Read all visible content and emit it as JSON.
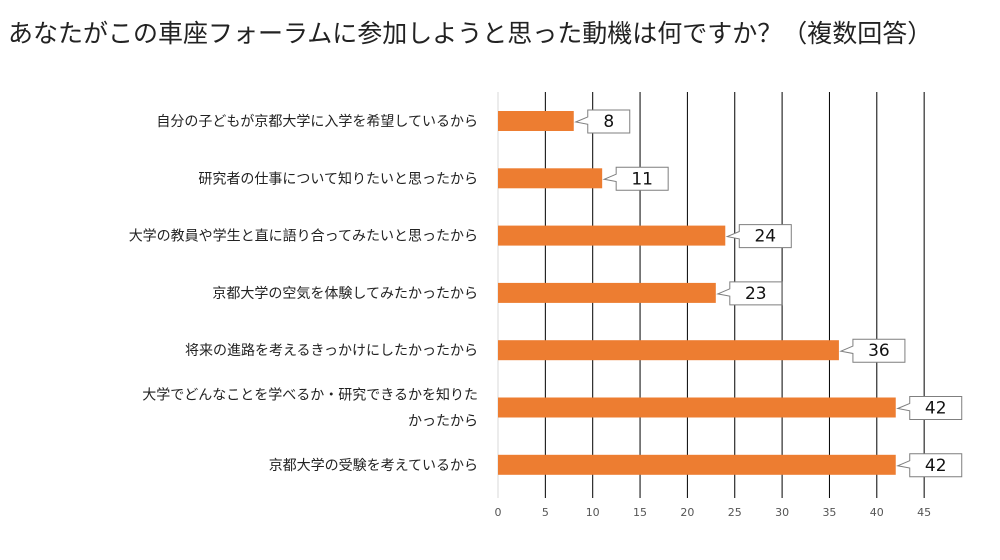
{
  "title": "あなたがこの車座フォーラムに参加しようと思った動機は何ですか？（複数回答）",
  "colors": {
    "bar": "#ED7D31",
    "grid": "#000000",
    "callout_border": "#7F7F7F"
  },
  "chart_data": {
    "type": "bar",
    "orientation": "horizontal",
    "categories": [
      [
        "自分の子どもが京都大学に入学を希望しているから"
      ],
      [
        "研究者の仕事について知りたいと思ったから"
      ],
      [
        "大学の教員や学生と直に語り合ってみたいと思ったから"
      ],
      [
        "京都大学の空気を体験してみたかったから"
      ],
      [
        "将来の進路を考えるきっかけにしたかったから"
      ],
      [
        "大学でどんなことを学べるか・研究できるかを知りた",
        "かったから"
      ],
      [
        "京都大学の受験を考えているから"
      ]
    ],
    "values": [
      8,
      11,
      24,
      23,
      36,
      42,
      42
    ],
    "xlim": [
      0,
      45
    ],
    "xticks": [
      0,
      5,
      10,
      15,
      20,
      25,
      30,
      35,
      40,
      45
    ],
    "grid": "vertical",
    "data_labels": "callout"
  }
}
